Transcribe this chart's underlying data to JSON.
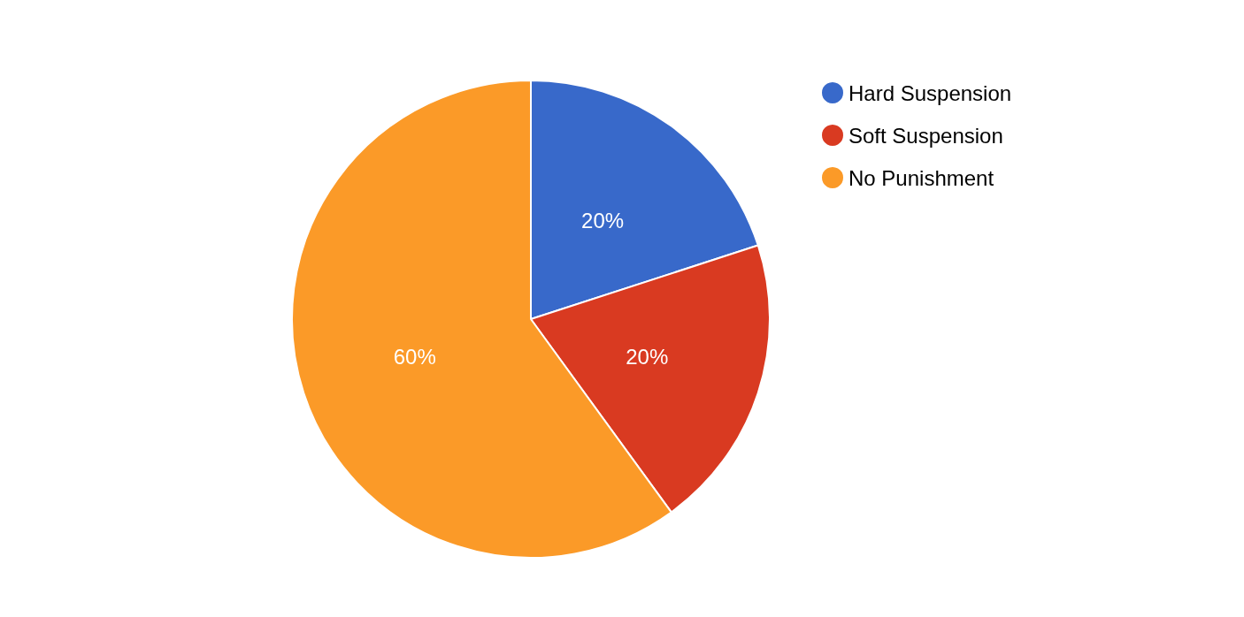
{
  "chart_data": {
    "type": "pie",
    "categories": [
      "Hard Suspension",
      "Soft Suspension",
      "No Punishment"
    ],
    "values": [
      20,
      20,
      60
    ],
    "value_labels": [
      "20%",
      "20%",
      "60%"
    ],
    "colors": [
      "#3869ca",
      "#d93a21",
      "#fb9a28"
    ],
    "legend": "top right"
  }
}
